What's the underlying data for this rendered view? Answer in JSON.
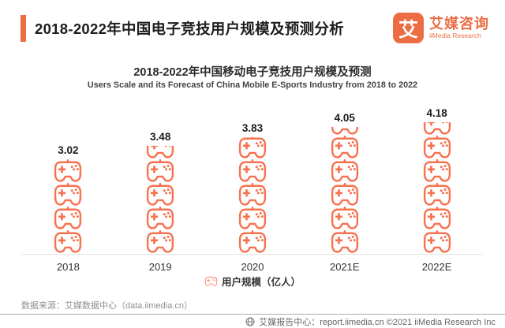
{
  "header": {
    "title": "2018-2022年中国电子竞技用户规模及预测分析",
    "logo": {
      "mark": "艾",
      "name_cn": "艾媒咨询",
      "name_en": "iiMedia Research"
    }
  },
  "chart_data": {
    "type": "bar",
    "variant": "pictogram-gamepad-stack",
    "title": "2018-2022年中国移动电子竞技用户规模及预测",
    "subtitle": "Users Scale and its Forecast of China Mobile E-Sports Industry from 2018 to 2022",
    "categories": [
      "2018",
      "2019",
      "2020",
      "2021E",
      "2022E"
    ],
    "values": [
      3.02,
      3.48,
      3.83,
      4.05,
      4.18
    ],
    "unit": "亿人",
    "legend": "用户规模（亿人）",
    "legend_position": "bottom",
    "grid": false,
    "ylim": [
      0,
      4.5
    ],
    "icon": "gamepad-icon",
    "icon_stacks": [
      {
        "full": 4,
        "partial": 0
      },
      {
        "full": 4,
        "partial": 0.58
      },
      {
        "full": 4,
        "partial": 0.93
      },
      {
        "full": 5,
        "partial": 0.38
      },
      {
        "full": 5,
        "partial": 0.55
      }
    ]
  },
  "footer": {
    "source": "数据来源：艾媒数据中心（data.iimedia.cn）",
    "report_center": "艾媒报告中心：report.iimedia.cn ©2021 iiMedia Research Inc"
  },
  "colors": {
    "accent": "#EC6C44",
    "icon_orange": "#F7714E",
    "title_text": "#1D1D1D",
    "axis_line": "#E4E4E4",
    "muted_text": "#8F8F8F"
  }
}
